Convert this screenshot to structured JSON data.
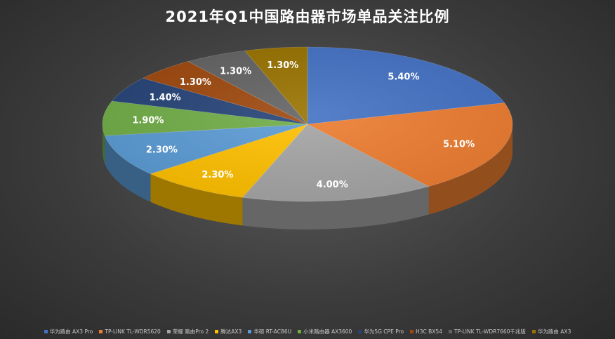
{
  "chart_data": {
    "type": "pie",
    "title": "2021年Q1中国路由器市场单品关注比例",
    "legend_position": "bottom",
    "slices": [
      {
        "name": "华为路由 AX3 Pro",
        "value": 5.4,
        "label": "5.40%",
        "color": "#4472C4"
      },
      {
        "name": "TP-LINK TL-WDR5620",
        "value": 5.1,
        "label": "5.10%",
        "color": "#ED7D31"
      },
      {
        "name": "荣耀 路由Pro 2",
        "value": 4.0,
        "label": "4.00%",
        "color": "#A5A5A5"
      },
      {
        "name": "腾达AX3",
        "value": 2.3,
        "label": "2.30%",
        "color": "#FFC000"
      },
      {
        "name": "华硕 RT-AC86U",
        "value": 2.3,
        "label": "2.30%",
        "color": "#5B9BD5"
      },
      {
        "name": "小米路由器 AX3600",
        "value": 1.9,
        "label": "1.90%",
        "color": "#70AD47"
      },
      {
        "name": "华为5G CPE Pro",
        "value": 1.4,
        "label": "1.40%",
        "color": "#264478"
      },
      {
        "name": "H3C BX54",
        "value": 1.3,
        "label": "1.30%",
        "color": "#9E480E"
      },
      {
        "name": "TP-LINK TL-WDR7660千兆版",
        "value": 1.3,
        "label": "1.30%",
        "color": "#636363"
      },
      {
        "name": "华为路由 AX3",
        "value": 1.3,
        "label": "1.30%",
        "color": "#997300"
      }
    ]
  }
}
